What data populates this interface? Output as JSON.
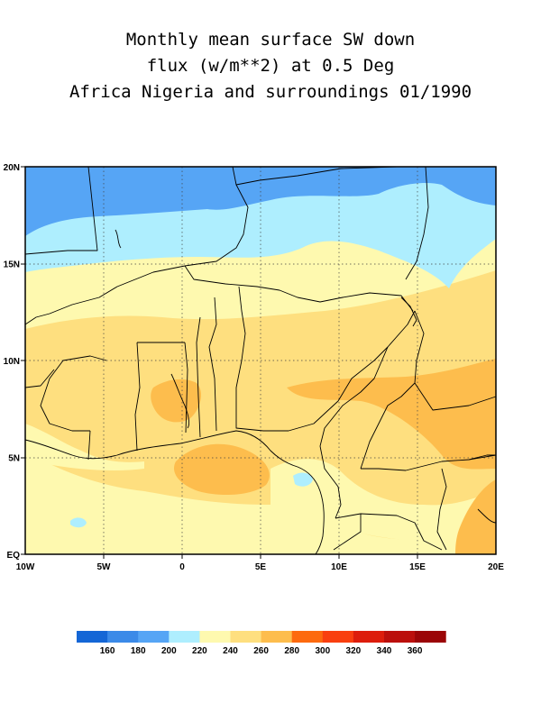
{
  "title": {
    "line1": "Monthly mean surface SW down",
    "line2": "flux (w/m**2) at 0.5 Deg",
    "line3": "Africa Nigeria and surroundings 01/1990"
  },
  "map": {
    "lon_range": [
      -10,
      20
    ],
    "lat_range": [
      0,
      20
    ],
    "x_ticks": [
      {
        "lon": -10,
        "label": "10W"
      },
      {
        "lon": -5,
        "label": "5W"
      },
      {
        "lon": 0,
        "label": "0"
      },
      {
        "lon": 5,
        "label": "5E"
      },
      {
        "lon": 10,
        "label": "10E"
      },
      {
        "lon": 15,
        "label": "15E"
      },
      {
        "lon": 20,
        "label": "20E"
      }
    ],
    "y_ticks": [
      {
        "lat": 0,
        "label": "EQ"
      },
      {
        "lat": 5,
        "label": "5N"
      },
      {
        "lat": 10,
        "label": "10N"
      },
      {
        "lat": 15,
        "label": "15N"
      },
      {
        "lat": 20,
        "label": "20N"
      }
    ],
    "gridlines": "dotted",
    "levels": {
      "200-220": "#56a5f5",
      "220-240": "#aeeefe",
      "240-260": "#fef9af",
      "260-280": "#fedf7f",
      "280-300": "#fdbd4d"
    }
  },
  "colorbar": {
    "colors": [
      "#1466d6",
      "#3b8ae8",
      "#56a5f5",
      "#aeeefe",
      "#fef9af",
      "#fedf7f",
      "#fdbd4d",
      "#fd6a0e",
      "#f93f0f",
      "#dd1d0c",
      "#bb0f0c",
      "#9b0507"
    ],
    "labels": [
      "160",
      "180",
      "200",
      "220",
      "240",
      "260",
      "280",
      "300",
      "320",
      "340",
      "360"
    ]
  }
}
